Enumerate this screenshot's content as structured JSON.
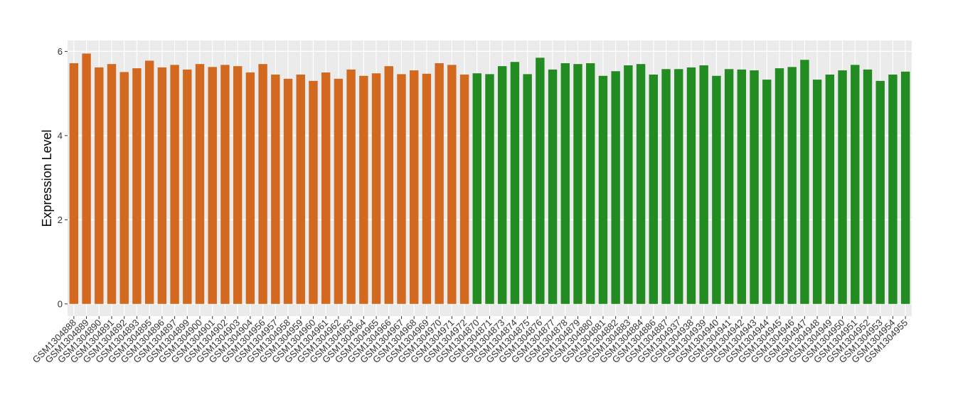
{
  "chart_data": {
    "type": "bar",
    "y_label": "Expression Level",
    "categories": [
      "GSM1304888",
      "GSM1304889",
      "GSM1304890",
      "GSM1304891",
      "GSM1304892",
      "GSM1304893",
      "GSM1304895",
      "GSM1304896",
      "GSM1304897",
      "GSM1304899",
      "GSM1304900",
      "GSM1304901",
      "GSM1304902",
      "GSM1304903",
      "GSM1304904",
      "GSM1304956",
      "GSM1304957",
      "GSM1304958",
      "GSM1304959",
      "GSM1304960",
      "GSM1304961",
      "GSM1304962",
      "GSM1304963",
      "GSM1304964",
      "GSM1304965",
      "GSM1304966",
      "GSM1304967",
      "GSM1304968",
      "GSM1304969",
      "GSM1304970",
      "GSM1304971",
      "GSM1304972",
      "GSM1304870",
      "GSM1304871",
      "GSM1304873",
      "GSM1304874",
      "GSM1304875",
      "GSM1304876",
      "GSM1304877",
      "GSM1304878",
      "GSM1304879",
      "GSM1304880",
      "GSM1304881",
      "GSM1304882",
      "GSM1304883",
      "GSM1304884",
      "GSM1304886",
      "GSM1304887",
      "GSM1304937",
      "GSM1304938",
      "GSM1304939",
      "GSM1304940",
      "GSM1304941",
      "GSM1304942",
      "GSM1304943",
      "GSM1304944",
      "GSM1304945",
      "GSM1304946",
      "GSM1304947",
      "GSM1304948",
      "GSM1304949",
      "GSM1304950",
      "GSM1304951",
      "GSM1304952",
      "GSM1304953",
      "GSM1304954",
      "GSM1304955"
    ],
    "values": [
      5.72,
      5.95,
      5.62,
      5.7,
      5.51,
      5.6,
      5.78,
      5.62,
      5.68,
      5.57,
      5.7,
      5.63,
      5.68,
      5.65,
      5.5,
      5.7,
      5.45,
      5.35,
      5.45,
      5.3,
      5.5,
      5.35,
      5.57,
      5.42,
      5.48,
      5.65,
      5.46,
      5.55,
      5.47,
      5.72,
      5.68,
      5.45,
      5.48,
      5.46,
      5.65,
      5.75,
      5.46,
      5.85,
      5.57,
      5.72,
      5.7,
      5.72,
      5.42,
      5.53,
      5.67,
      5.7,
      5.45,
      5.58,
      5.58,
      5.62,
      5.67,
      5.42,
      5.58,
      5.57,
      5.55,
      5.33,
      5.6,
      5.63,
      5.8,
      5.33,
      5.45,
      5.55,
      5.68,
      5.57,
      5.3,
      5.45,
      5.52
    ],
    "colors": [
      "#d2691e",
      "#d2691e",
      "#d2691e",
      "#d2691e",
      "#d2691e",
      "#d2691e",
      "#d2691e",
      "#d2691e",
      "#d2691e",
      "#d2691e",
      "#d2691e",
      "#d2691e",
      "#d2691e",
      "#d2691e",
      "#d2691e",
      "#d2691e",
      "#d2691e",
      "#d2691e",
      "#d2691e",
      "#d2691e",
      "#d2691e",
      "#d2691e",
      "#d2691e",
      "#d2691e",
      "#d2691e",
      "#d2691e",
      "#d2691e",
      "#d2691e",
      "#d2691e",
      "#d2691e",
      "#d2691e",
      "#d2691e",
      "#228b22",
      "#228b22",
      "#228b22",
      "#228b22",
      "#228b22",
      "#228b22",
      "#228b22",
      "#228b22",
      "#228b22",
      "#228b22",
      "#228b22",
      "#228b22",
      "#228b22",
      "#228b22",
      "#228b22",
      "#228b22",
      "#228b22",
      "#228b22",
      "#228b22",
      "#228b22",
      "#228b22",
      "#228b22",
      "#228b22",
      "#228b22",
      "#228b22",
      "#228b22",
      "#228b22",
      "#228b22",
      "#228b22",
      "#228b22",
      "#228b22",
      "#228b22",
      "#228b22",
      "#228b22",
      "#228b22"
    ],
    "ylim": [
      -0.29,
      6.26
    ],
    "yticks": [
      0,
      2,
      4,
      6
    ],
    "grid": true
  }
}
